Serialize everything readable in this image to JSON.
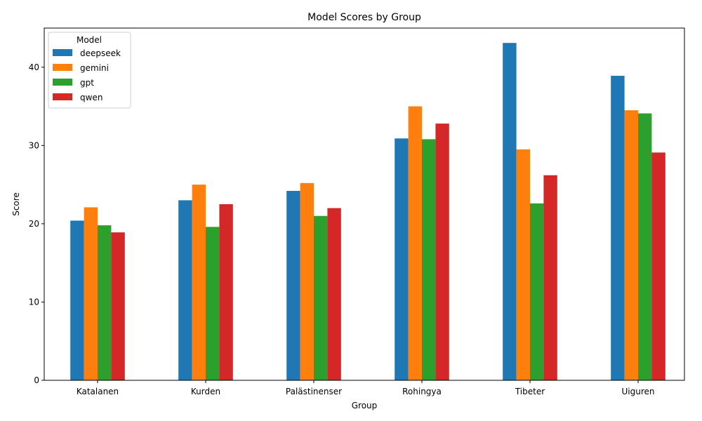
{
  "chart_data": {
    "type": "bar",
    "title": "Model Scores by Group",
    "xlabel": "Group",
    "ylabel": "Score",
    "ylim": [
      0,
      45
    ],
    "yticks": [
      0,
      10,
      20,
      30,
      40
    ],
    "grid": false,
    "legend": {
      "title": "Model",
      "position": "top-left"
    },
    "categories": [
      "Katalanen",
      "Kurden",
      "Palästinenser",
      "Rohingya",
      "Tibeter",
      "Uiguren"
    ],
    "series": [
      {
        "name": "deepseek",
        "color": "#1f77b4",
        "values": [
          20.4,
          23.0,
          24.2,
          30.9,
          43.1,
          38.9
        ]
      },
      {
        "name": "gemini",
        "color": "#ff7f0e",
        "values": [
          22.1,
          25.0,
          25.2,
          35.0,
          29.5,
          34.5
        ]
      },
      {
        "name": "gpt",
        "color": "#2ca02c",
        "values": [
          19.8,
          19.6,
          21.0,
          30.8,
          22.6,
          34.1
        ]
      },
      {
        "name": "qwen",
        "color": "#d62728",
        "values": [
          18.9,
          22.5,
          22.0,
          32.8,
          26.2,
          29.1
        ]
      }
    ]
  }
}
